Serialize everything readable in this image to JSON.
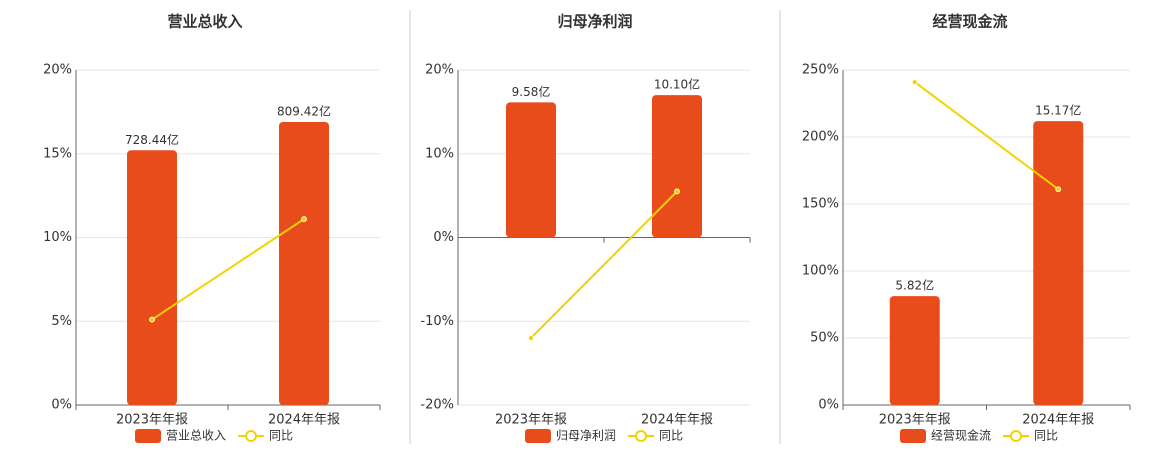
{
  "chart_data": [
    {
      "type": "bar",
      "title": "营业总收入",
      "categories": [
        "2023年年报",
        "2024年年报"
      ],
      "series": [
        {
          "name": "营业总收入",
          "color": "#e84c1a",
          "values": [
            728.44,
            809.42
          ],
          "value_labels": [
            "728.44亿",
            "809.42亿"
          ],
          "axis": "y2"
        },
        {
          "name": "同比",
          "color": "#f2d300",
          "type": "line",
          "values": [
            5.1,
            11.1
          ]
        }
      ],
      "ylim": [
        0,
        20
      ],
      "yticks": [
        {
          "value": 0,
          "label": "0%"
        },
        {
          "value": 5,
          "label": "5%"
        },
        {
          "value": 10,
          "label": "10%"
        },
        {
          "value": 15,
          "label": "15%"
        },
        {
          "value": 20,
          "label": "20%"
        }
      ],
      "y2lim": [
        0,
        958
      ],
      "grid": true,
      "legend": "bottom"
    },
    {
      "type": "bar",
      "title": "归母净利润",
      "categories": [
        "2023年年报",
        "2024年年报"
      ],
      "series": [
        {
          "name": "归母净利润",
          "color": "#e84c1a",
          "values": [
            9.58,
            10.1
          ],
          "value_labels": [
            "9.58亿",
            "10.10亿"
          ],
          "axis": "y2"
        },
        {
          "name": "同比",
          "color": "#f2d300",
          "type": "line",
          "values": [
            -12,
            5.5
          ]
        }
      ],
      "ylim": [
        -20,
        20
      ],
      "yticks": [
        {
          "value": -20,
          "label": "-20%"
        },
        {
          "value": -10,
          "label": "-10%"
        },
        {
          "value": 0,
          "label": "0%"
        },
        {
          "value": 10,
          "label": "10%"
        },
        {
          "value": 20,
          "label": "20%"
        }
      ],
      "y2lim": [
        -11.88,
        11.88
      ],
      "grid": true,
      "legend": "bottom"
    },
    {
      "type": "bar",
      "title": "经营现金流",
      "categories": [
        "2023年年报",
        "2024年年报"
      ],
      "series": [
        {
          "name": "经营现金流",
          "color": "#e84c1a",
          "values": [
            5.82,
            15.17
          ],
          "value_labels": [
            "5.82亿",
            "15.17亿"
          ],
          "axis": "y2"
        },
        {
          "name": "同比",
          "color": "#f2d300",
          "type": "line",
          "values": [
            241,
            161
          ]
        }
      ],
      "ylim": [
        0,
        250
      ],
      "yticks": [
        {
          "value": 0,
          "label": "0%"
        },
        {
          "value": 50,
          "label": "50%"
        },
        {
          "value": 100,
          "label": "100%"
        },
        {
          "value": 150,
          "label": "150%"
        },
        {
          "value": 200,
          "label": "200%"
        },
        {
          "value": 250,
          "label": "250%"
        }
      ],
      "y2lim": [
        0,
        17.9
      ],
      "grid": true,
      "legend": "bottom"
    }
  ]
}
